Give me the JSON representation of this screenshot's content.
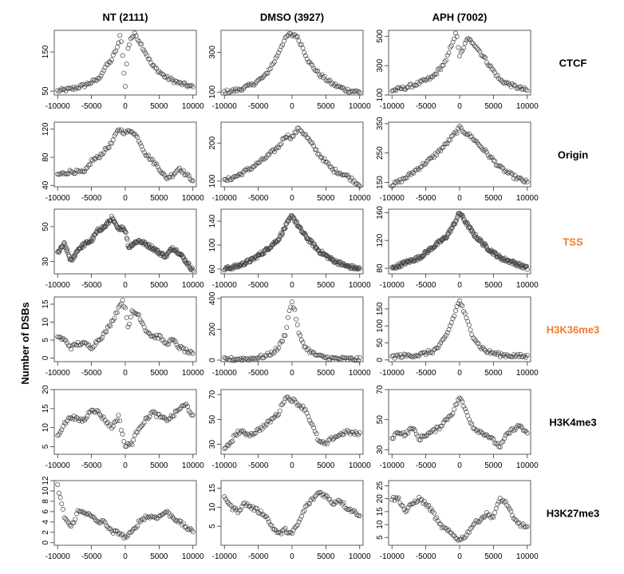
{
  "ylabel": "Number of DSBs",
  "columns": [
    "NT (2111)",
    "DMSO (3927)",
    "APH (7002)"
  ],
  "rows": [
    {
      "label": "CTCF",
      "color": "#000000"
    },
    {
      "label": "Origin",
      "color": "#000000"
    },
    {
      "label": "TSS",
      "color": "#f07b2a"
    },
    {
      "label": "H3K36me3",
      "color": "#f07b2a"
    },
    {
      "label": "H3K4me3",
      "color": "#000000"
    },
    {
      "label": "H3K27me3",
      "color": "#000000"
    }
  ],
  "x_ticks": [
    -10000,
    -5000,
    0,
    5000,
    10000
  ],
  "chart_data": [
    {
      "type": "scatter",
      "row": "CTCF",
      "column": "NT (2111)",
      "ylim": [
        40,
        205
      ],
      "yticks": [
        50,
        150
      ],
      "profile": {
        "x": [
          -10000,
          -8000,
          -6000,
          -4000,
          -3000,
          -2000,
          -1000,
          -700,
          -300,
          0,
          300,
          800,
          1500,
          2500,
          4000,
          5000,
          6000,
          8000,
          10000
        ],
        "y": [
          50,
          55,
          65,
          80,
          110,
          130,
          170,
          200,
          120,
          60,
          150,
          185,
          195,
          165,
          115,
          100,
          85,
          70,
          60
        ]
      }
    },
    {
      "type": "scatter",
      "row": "CTCF",
      "column": "DMSO (3927)",
      "ylim": [
        85,
        410
      ],
      "yticks": [
        100,
        300
      ],
      "profile": {
        "x": [
          -10000,
          -8000,
          -6000,
          -4000,
          -2500,
          -1500,
          -500,
          0,
          500,
          1500,
          2500,
          4000,
          6000,
          8000,
          10000
        ],
        "y": [
          100,
          110,
          135,
          180,
          260,
          340,
          390,
          385,
          390,
          330,
          250,
          190,
          140,
          110,
          100
        ]
      }
    },
    {
      "type": "scatter",
      "row": "CTCF",
      "column": "APH (7002)",
      "ylim": [
        100,
        540
      ],
      "yticks": [
        100,
        300,
        500
      ],
      "profile": {
        "x": [
          -10000,
          -8000,
          -6000,
          -4000,
          -2000,
          -1000,
          -500,
          0,
          500,
          1000,
          2000,
          4000,
          6000,
          8000,
          10000
        ],
        "y": [
          130,
          150,
          180,
          220,
          330,
          470,
          520,
          370,
          400,
          480,
          460,
          330,
          200,
          160,
          130
        ]
      }
    },
    {
      "type": "scatter",
      "row": "Origin",
      "column": "NT (2111)",
      "ylim": [
        38,
        130
      ],
      "yticks": [
        40,
        80,
        120
      ],
      "profile": {
        "x": [
          -10000,
          -8000,
          -6000,
          -5000,
          -4000,
          -2000,
          -1000,
          0,
          1000,
          2000,
          3000,
          4000,
          5000,
          6000,
          7000,
          8000,
          9000,
          10000
        ],
        "y": [
          55,
          60,
          58,
          75,
          80,
          100,
          120,
          115,
          118,
          105,
          85,
          75,
          65,
          50,
          55,
          65,
          55,
          48
        ]
      }
    },
    {
      "type": "scatter",
      "row": "Origin",
      "column": "DMSO (3927)",
      "ylim": [
        85,
        255
      ],
      "yticks": [
        100,
        200
      ],
      "profile": {
        "x": [
          -10000,
          -8000,
          -6000,
          -4000,
          -2000,
          -1000,
          0,
          1000,
          2000,
          4000,
          6000,
          8000,
          10000
        ],
        "y": [
          100,
          115,
          135,
          160,
          190,
          220,
          215,
          240,
          220,
          170,
          130,
          115,
          90
        ]
      }
    },
    {
      "type": "scatter",
      "row": "Origin",
      "column": "APH (7002)",
      "ylim": [
        135,
        355
      ],
      "yticks": [
        150,
        250,
        350
      ],
      "profile": {
        "x": [
          -10000,
          -8000,
          -6000,
          -4000,
          -2000,
          0,
          2000,
          4000,
          6000,
          8000,
          10000
        ],
        "y": [
          140,
          165,
          200,
          235,
          280,
          335,
          300,
          250,
          200,
          170,
          150
        ]
      }
    },
    {
      "type": "scatter",
      "row": "TSS",
      "column": "NT (2111)",
      "ylim": [
        23,
        60
      ],
      "yticks": [
        30,
        50
      ],
      "profile": {
        "x": [
          -10000,
          -9000,
          -8000,
          -7000,
          -6000,
          -5000,
          -4000,
          -3000,
          -2000,
          -1000,
          -500,
          0,
          500,
          1000,
          2000,
          3000,
          4000,
          5000,
          6000,
          7000,
          8000,
          9000,
          10000
        ],
        "y": [
          35,
          40,
          30,
          37,
          40,
          42,
          48,
          50,
          55,
          48,
          50,
          48,
          38,
          40,
          42,
          40,
          38,
          35,
          33,
          38,
          35,
          30,
          25
        ]
      }
    },
    {
      "type": "scatter",
      "row": "TSS",
      "column": "DMSO (3927)",
      "ylim": [
        52,
        160
      ],
      "yticks": [
        60,
        100,
        140
      ],
      "profile": {
        "x": [
          -10000,
          -8000,
          -6000,
          -4000,
          -2000,
          -1000,
          0,
          1000,
          2000,
          4000,
          6000,
          8000,
          10000
        ],
        "y": [
          60,
          65,
          75,
          90,
          110,
          130,
          150,
          130,
          115,
          90,
          75,
          65,
          60
        ]
      }
    },
    {
      "type": "scatter",
      "row": "TSS",
      "column": "APH (7002)",
      "ylim": [
        72,
        165
      ],
      "yticks": [
        80,
        120,
        160
      ],
      "profile": {
        "x": [
          -10000,
          -8000,
          -6000,
          -4000,
          -2000,
          -1000,
          0,
          1000,
          2000,
          4000,
          6000,
          8000,
          10000
        ],
        "y": [
          80,
          88,
          95,
          110,
          125,
          140,
          160,
          145,
          130,
          110,
          95,
          88,
          80
        ]
      }
    },
    {
      "type": "scatter",
      "row": "H3K36me3",
      "column": "NT (2111)",
      "ylim": [
        -1,
        17
      ],
      "yticks": [
        0,
        5,
        10,
        15
      ],
      "profile": {
        "x": [
          -10000,
          -9000,
          -8000,
          -7000,
          -6000,
          -5000,
          -4000,
          -3000,
          -2000,
          -1000,
          -500,
          0,
          500,
          1000,
          2000,
          3000,
          4000,
          5000,
          6000,
          7000,
          8000,
          9000,
          10000
        ],
        "y": [
          6,
          5,
          3,
          4,
          4,
          3,
          5,
          7,
          10,
          14,
          16,
          14,
          8,
          13,
          12,
          8,
          6,
          6,
          4,
          5,
          3,
          2,
          1
        ]
      }
    },
    {
      "type": "scatter",
      "row": "H3K36me3",
      "column": "DMSO (3927)",
      "ylim": [
        -10,
        410
      ],
      "yticks": [
        0,
        200,
        400
      ],
      "profile": {
        "x": [
          -10000,
          -6000,
          -4000,
          -3000,
          -2000,
          -1000,
          -500,
          0,
          500,
          1000,
          2000,
          3000,
          4000,
          6000,
          10000
        ],
        "y": [
          5,
          10,
          25,
          45,
          80,
          170,
          300,
          380,
          300,
          170,
          80,
          45,
          25,
          10,
          5
        ]
      }
    },
    {
      "type": "scatter",
      "row": "H3K36me3",
      "column": "APH (7002)",
      "ylim": [
        -5,
        185
      ],
      "yticks": [
        0,
        50,
        100,
        150
      ],
      "profile": {
        "x": [
          -10000,
          -6000,
          -4000,
          -3000,
          -2000,
          -1000,
          -500,
          0,
          500,
          1000,
          2000,
          3000,
          4000,
          6000,
          10000
        ],
        "y": [
          10,
          15,
          25,
          40,
          70,
          120,
          150,
          175,
          150,
          120,
          70,
          40,
          25,
          15,
          10
        ]
      }
    },
    {
      "type": "scatter",
      "row": "H3K4me3",
      "column": "NT (2111)",
      "ylim": [
        3,
        20
      ],
      "yticks": [
        5,
        10,
        15,
        20
      ],
      "profile": {
        "x": [
          -10000,
          -9000,
          -8000,
          -7000,
          -6000,
          -5000,
          -4000,
          -3000,
          -2000,
          -1000,
          0,
          1000,
          2000,
          3000,
          4000,
          5000,
          6000,
          7000,
          8000,
          9000,
          10000
        ],
        "y": [
          8,
          11,
          13,
          12,
          12,
          15,
          14,
          12,
          10,
          13,
          5,
          6,
          10,
          12,
          14,
          13,
          12,
          13,
          15,
          16,
          13
        ]
      }
    },
    {
      "type": "scatter",
      "row": "H3K4me3",
      "column": "DMSO (3927)",
      "ylim": [
        22,
        74
      ],
      "yticks": [
        30,
        50,
        70
      ],
      "profile": {
        "x": [
          -10000,
          -8000,
          -6000,
          -4000,
          -2000,
          -1000,
          0,
          1000,
          2000,
          3000,
          4000,
          5000,
          6000,
          8000,
          10000
        ],
        "y": [
          25,
          40,
          38,
          45,
          55,
          68,
          66,
          62,
          58,
          45,
          32,
          30,
          35,
          40,
          38
        ]
      }
    },
    {
      "type": "scatter",
      "row": "H3K4me3",
      "column": "APH (7002)",
      "ylim": [
        27,
        70
      ],
      "yticks": [
        30,
        50,
        70
      ],
      "profile": {
        "x": [
          -10000,
          -9000,
          -8000,
          -7000,
          -6000,
          -5000,
          -4000,
          -3000,
          -2000,
          -1000,
          0,
          1000,
          2000,
          3000,
          4000,
          5000,
          6000,
          7000,
          8000,
          9000,
          10000
        ],
        "y": [
          38,
          42,
          40,
          45,
          37,
          40,
          42,
          45,
          50,
          55,
          65,
          55,
          45,
          42,
          40,
          36,
          32,
          40,
          44,
          46,
          40
        ]
      }
    },
    {
      "type": "scatter",
      "row": "H3K27me3",
      "column": "NT (2111)",
      "ylim": [
        -0.5,
        12
      ],
      "yticks": [
        0,
        2,
        4,
        6,
        8,
        10,
        12
      ],
      "profile": {
        "x": [
          -10000,
          -9000,
          -8000,
          -7000,
          -6000,
          -5000,
          -4000,
          -3000,
          -2000,
          -1000,
          0,
          1000,
          2000,
          3000,
          4000,
          5000,
          6000,
          7000,
          8000,
          9000,
          10000
        ],
        "y": [
          11,
          5,
          3,
          6,
          6,
          5,
          4,
          4,
          2,
          2,
          1,
          2,
          4,
          5,
          5,
          5,
          6,
          5,
          4,
          3,
          2
        ]
      }
    },
    {
      "type": "scatter",
      "row": "H3K27me3",
      "column": "DMSO (3927)",
      "ylim": [
        0,
        17
      ],
      "yticks": [
        5,
        10,
        15
      ],
      "profile": {
        "x": [
          -10000,
          -9000,
          -8000,
          -7000,
          -6000,
          -5000,
          -4000,
          -3000,
          -2000,
          -1000,
          0,
          1000,
          2000,
          3000,
          4000,
          5000,
          6000,
          7000,
          8000,
          9000,
          10000
        ],
        "y": [
          13,
          10,
          9,
          11,
          10,
          9,
          8,
          5,
          3,
          4,
          3,
          6,
          10,
          12,
          14,
          13,
          11,
          12,
          10,
          9,
          8
        ]
      }
    },
    {
      "type": "scatter",
      "row": "H3K27me3",
      "column": "APH (7002)",
      "ylim": [
        2,
        27
      ],
      "yticks": [
        5,
        10,
        15,
        20,
        25
      ],
      "profile": {
        "x": [
          -10000,
          -9000,
          -8000,
          -7000,
          -6000,
          -5000,
          -4000,
          -3000,
          -2000,
          -1000,
          0,
          1000,
          2000,
          3000,
          4000,
          5000,
          6000,
          7000,
          8000,
          9000,
          10000
        ],
        "y": [
          20,
          20,
          15,
          18,
          20,
          18,
          15,
          10,
          8,
          6,
          4,
          6,
          10,
          12,
          14,
          13,
          20,
          18,
          12,
          10,
          9
        ]
      }
    }
  ]
}
